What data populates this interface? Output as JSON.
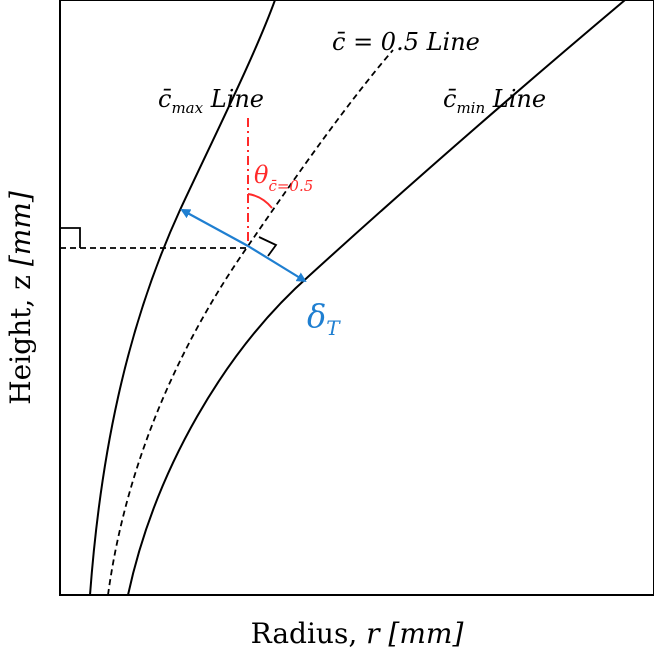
{
  "axes": {
    "xlabel_main": "Radius, ",
    "xlabel_var": "r",
    "xlabel_unit": " [mm]",
    "ylabel_main": "Height, z ",
    "ylabel_unit": "[mm]"
  },
  "labels": {
    "cmax_c": "c̄",
    "cmax_sub": "max",
    "cmax_line": " Line",
    "chalf": "c̄ = 0.5 Line",
    "cmin_c": "c̄",
    "cmin_sub": "min",
    "cmin_line": " Line",
    "theta": "θ",
    "theta_sub": "c̄=0.5",
    "delta": "δ",
    "delta_sub": "T"
  },
  "colors": {
    "curve": "#000000",
    "theta": "#ff2a2a",
    "delta": "#1f7fd1"
  }
}
